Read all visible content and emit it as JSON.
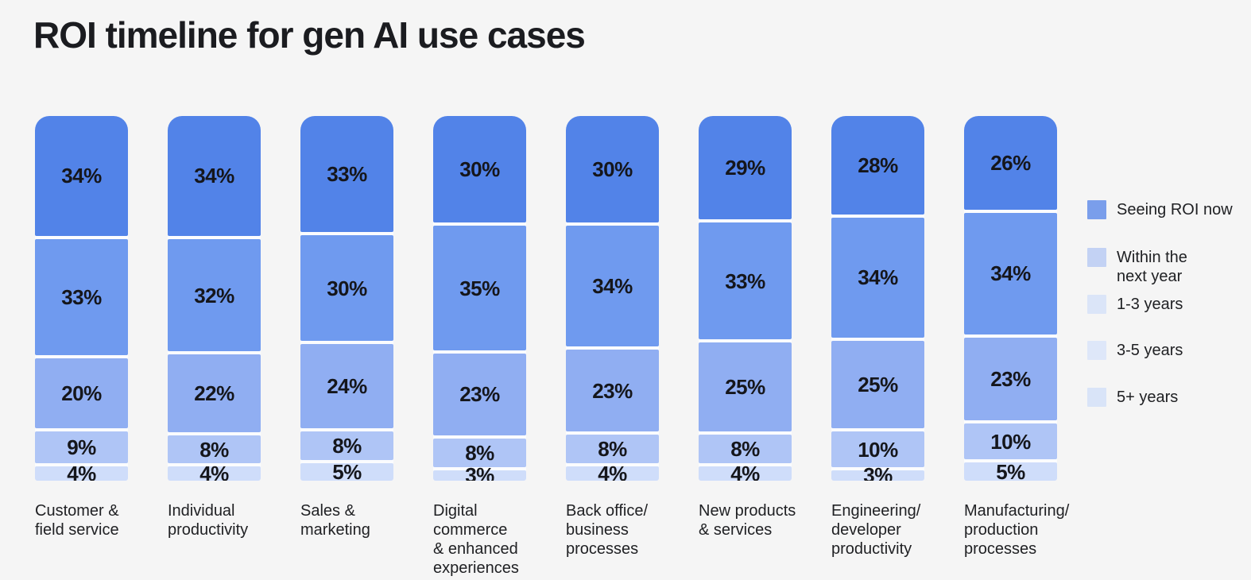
{
  "title": "ROI timeline for gen AI use cases",
  "colors": {
    "background": "#F5F5F5",
    "segment_colors": [
      "#5283E8",
      "#6F9AEF",
      "#90AEF2",
      "#AFC5F6",
      "#CFDDFA"
    ],
    "legend_swatch_colors": [
      "#7A9EEB",
      "#C3D2F4",
      "#DBE5F8",
      "#DEE7F9",
      "#D9E4F8"
    ],
    "value_label_color": "#15161B",
    "category_label_color": "#202124",
    "title_color": "#1B1C20"
  },
  "legend": {
    "position": "right",
    "items": [
      {
        "label": "Seeing ROI now",
        "display": "Seeing ROI now"
      },
      {
        "label": "Within the next year",
        "display": "Within the\nnext year"
      },
      {
        "label": "1-3 years",
        "display": "1-3 years"
      },
      {
        "label": "3-5 years",
        "display": "3-5 years"
      },
      {
        "label": "5+ years",
        "display": "5+ years"
      }
    ]
  },
  "chart_data": {
    "type": "bar",
    "stacked": true,
    "orientation": "vertical",
    "unit": "%",
    "value_range": [
      0,
      100
    ],
    "grid": false,
    "title": "ROI timeline for gen AI use cases",
    "legend_position": "right",
    "series_names": [
      "Seeing ROI now",
      "Within the next year",
      "1-3 years",
      "3-5 years",
      "5+ years"
    ],
    "categories": [
      "Customer & field service",
      "Individual productivity",
      "Sales & marketing",
      "Digital commerce & enhanced experiences",
      "Back office/ business processes",
      "New products & services",
      "Engineering/ developer productivity",
      "Manufacturing/ production processes"
    ],
    "columns": [
      {
        "label": "Customer & field service",
        "display": "Customer &\nfield service",
        "values": [
          34,
          33,
          20,
          9,
          4
        ]
      },
      {
        "label": "Individual productivity",
        "display": "Individual\nproductivity",
        "values": [
          34,
          32,
          22,
          8,
          4
        ]
      },
      {
        "label": "Sales & marketing",
        "display": "Sales &\nmarketing",
        "values": [
          33,
          30,
          24,
          8,
          5
        ]
      },
      {
        "label": "Digital commerce & enhanced experiences",
        "display": "Digital\ncommerce\n& enhanced\nexperiences",
        "values": [
          30,
          35,
          23,
          8,
          3
        ]
      },
      {
        "label": "Back office/ business processes",
        "display": "Back office/\nbusiness\nprocesses",
        "values": [
          30,
          34,
          23,
          8,
          4
        ]
      },
      {
        "label": "New products & services",
        "display": "New products\n& services",
        "values": [
          29,
          33,
          25,
          8,
          4
        ]
      },
      {
        "label": "Engineering/ developer productivity",
        "display": "Engineering/\ndeveloper\nproductivity",
        "values": [
          28,
          34,
          25,
          10,
          3
        ]
      },
      {
        "label": "Manufacturing/ production processes",
        "display": "Manufacturing/\nproduction\nprocesses",
        "values": [
          26,
          34,
          23,
          10,
          5
        ]
      }
    ]
  }
}
